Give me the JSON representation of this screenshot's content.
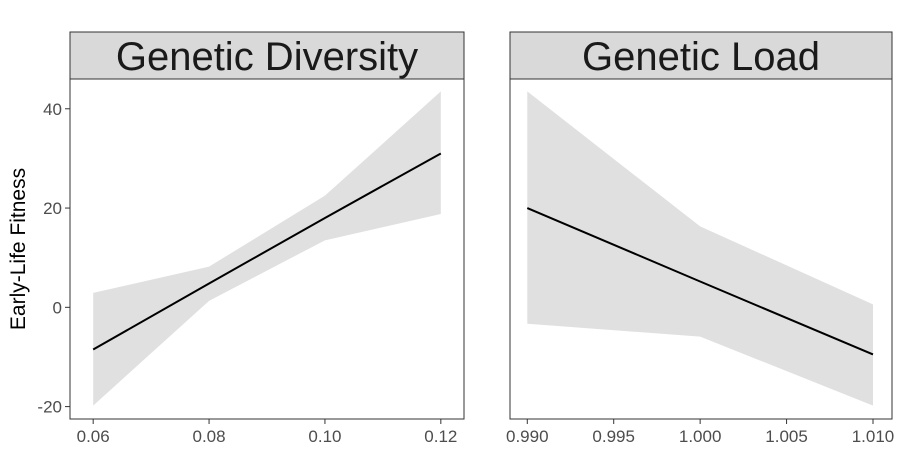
{
  "ylabel": "Early-Life Fitness",
  "colors": {
    "ribbon": "#e0e0e0",
    "line": "#000000",
    "strip_fill": "#d9d9d9",
    "border": "#333333",
    "tick_text": "#4d4d4d"
  },
  "chart_data": [
    {
      "type": "line",
      "title": "Genetic Diversity",
      "xlabel": "",
      "ylabel": "Early-Life Fitness",
      "xlim": [
        0.056,
        0.124
      ],
      "ylim": [
        -22.5,
        46
      ],
      "x_ticks": [
        0.06,
        0.08,
        0.1,
        0.12
      ],
      "x_tick_labels": [
        "0.06",
        "0.08",
        "0.10",
        "0.12"
      ],
      "y_ticks": [
        -20,
        0,
        20,
        40
      ],
      "y_tick_labels": [
        "-20",
        "0",
        "20",
        "40"
      ],
      "grid": false,
      "series": [
        {
          "x": [
            0.06,
            0.08,
            0.1,
            0.12
          ],
          "y": [
            -8.5,
            4.8,
            18.0,
            31.0
          ],
          "lower": [
            -19.8,
            1.3,
            13.5,
            18.8
          ],
          "upper": [
            2.9,
            8.2,
            22.5,
            43.5
          ]
        }
      ]
    },
    {
      "type": "line",
      "title": "Genetic Load",
      "xlabel": "",
      "ylabel": "",
      "xlim": [
        0.989,
        1.0111
      ],
      "ylim": [
        -22.5,
        46
      ],
      "x_ticks": [
        0.99,
        0.995,
        1.0,
        1.005,
        1.01
      ],
      "x_tick_labels": [
        "0.990",
        "0.995",
        "1.000",
        "1.005",
        "1.010"
      ],
      "y_ticks": [
        -20,
        0,
        20,
        40
      ],
      "y_tick_labels": [],
      "grid": false,
      "series": [
        {
          "x": [
            0.99,
            1.0,
            1.01
          ],
          "y": [
            20.0,
            5.2,
            -9.5
          ],
          "lower": [
            -3.3,
            -5.9,
            -19.8
          ],
          "upper": [
            43.5,
            16.3,
            0.6
          ]
        }
      ]
    }
  ]
}
